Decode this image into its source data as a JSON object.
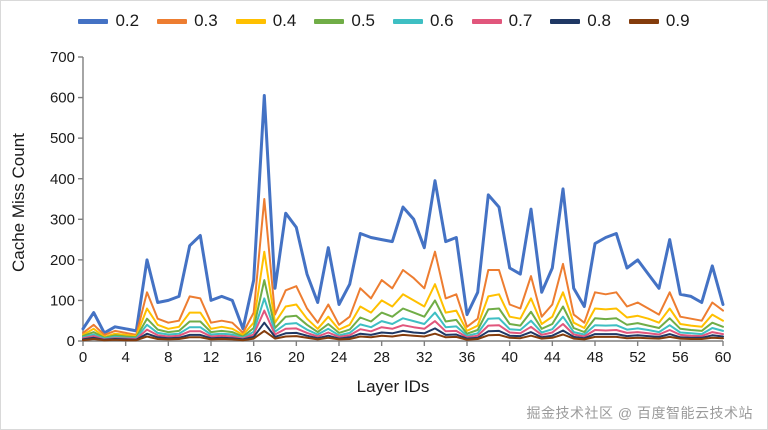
{
  "figure": {
    "background": "#ffffff",
    "watermark": "掘金技术社区 @ 百度智能云技术站"
  },
  "chart_data": {
    "type": "line",
    "title": "",
    "xlabel": "Layer IDs",
    "ylabel": "Cache Miss Count",
    "xlim": [
      0,
      60
    ],
    "ylim": [
      0,
      700
    ],
    "x_ticks": [
      0,
      4,
      8,
      12,
      16,
      20,
      24,
      28,
      32,
      36,
      40,
      44,
      48,
      52,
      56,
      60
    ],
    "y_ticks": [
      0,
      100,
      200,
      300,
      400,
      500,
      600,
      700
    ],
    "grid": false,
    "legend_position": "top",
    "axis_color": "#7f7f7f",
    "tick_label_color": "#1a1a1a",
    "x": [
      0,
      1,
      2,
      3,
      4,
      5,
      6,
      7,
      8,
      9,
      10,
      11,
      12,
      13,
      14,
      15,
      16,
      17,
      18,
      19,
      20,
      21,
      22,
      23,
      24,
      25,
      26,
      27,
      28,
      29,
      30,
      31,
      32,
      33,
      34,
      35,
      36,
      37,
      38,
      39,
      40,
      41,
      42,
      43,
      44,
      45,
      46,
      47,
      48,
      49,
      50,
      51,
      52,
      53,
      54,
      55,
      56,
      57,
      58,
      59,
      60
    ],
    "series": [
      {
        "name": "0.2",
        "color": "#4472C4",
        "line_width": 3,
        "values": [
          30,
          70,
          20,
          35,
          30,
          25,
          200,
          95,
          100,
          110,
          235,
          260,
          100,
          110,
          100,
          30,
          150,
          605,
          130,
          315,
          280,
          165,
          95,
          230,
          90,
          140,
          265,
          255,
          250,
          245,
          330,
          300,
          230,
          395,
          245,
          255,
          65,
          120,
          360,
          330,
          180,
          165,
          325,
          120,
          180,
          375,
          130,
          85,
          240,
          255,
          265,
          180,
          200,
          165,
          130,
          250,
          115,
          110,
          95,
          185,
          90
        ]
      },
      {
        "name": "0.3",
        "color": "#ED7D31",
        "line_width": 2,
        "values": [
          20,
          40,
          15,
          25,
          20,
          15,
          120,
          55,
          45,
          50,
          110,
          105,
          45,
          50,
          45,
          20,
          70,
          350,
          65,
          125,
          135,
          80,
          45,
          90,
          40,
          60,
          130,
          105,
          150,
          130,
          175,
          155,
          130,
          220,
          105,
          115,
          35,
          55,
          175,
          175,
          90,
          80,
          160,
          60,
          90,
          190,
          65,
          45,
          120,
          115,
          120,
          85,
          95,
          80,
          65,
          120,
          60,
          55,
          50,
          95,
          75
        ]
      },
      {
        "name": "0.4",
        "color": "#FFC000",
        "line_width": 2,
        "values": [
          15,
          30,
          10,
          18,
          15,
          12,
          80,
          40,
          30,
          35,
          70,
          70,
          30,
          35,
          30,
          15,
          45,
          220,
          45,
          85,
          90,
          55,
          30,
          60,
          28,
          40,
          85,
          70,
          100,
          85,
          115,
          100,
          85,
          140,
          70,
          75,
          25,
          38,
          110,
          115,
          60,
          55,
          105,
          42,
          60,
          120,
          45,
          32,
          80,
          78,
          80,
          58,
          62,
          55,
          45,
          80,
          42,
          38,
          35,
          65,
          50
        ]
      },
      {
        "name": "0.5",
        "color": "#70AD47",
        "line_width": 2,
        "values": [
          12,
          22,
          8,
          14,
          11,
          9,
          55,
          28,
          22,
          25,
          48,
          48,
          22,
          25,
          22,
          11,
          32,
          150,
          32,
          60,
          62,
          40,
          22,
          42,
          20,
          28,
          58,
          48,
          70,
          60,
          80,
          70,
          60,
          100,
          48,
          52,
          18,
          27,
          78,
          80,
          42,
          38,
          72,
          30,
          42,
          85,
          32,
          22,
          56,
          54,
          56,
          40,
          44,
          38,
          32,
          56,
          30,
          27,
          25,
          45,
          35
        ]
      },
      {
        "name": "0.6",
        "color": "#3EBFC3",
        "line_width": 2,
        "values": [
          9,
          16,
          6,
          10,
          8,
          7,
          40,
          20,
          16,
          18,
          34,
          34,
          16,
          18,
          16,
          8,
          23,
          105,
          23,
          42,
          44,
          28,
          16,
          30,
          14,
          20,
          41,
          34,
          49,
          42,
          56,
          49,
          42,
          70,
          34,
          36,
          13,
          19,
          55,
          56,
          29,
          27,
          50,
          21,
          29,
          60,
          22,
          16,
          39,
          38,
          39,
          28,
          31,
          27,
          22,
          39,
          21,
          19,
          17,
          32,
          25
        ]
      },
      {
        "name": "0.7",
        "color": "#E1567C",
        "line_width": 2,
        "values": [
          7,
          12,
          4,
          7,
          6,
          5,
          28,
          14,
          11,
          13,
          24,
          24,
          11,
          13,
          11,
          6,
          16,
          75,
          16,
          30,
          31,
          20,
          11,
          21,
          10,
          14,
          29,
          24,
          34,
          30,
          39,
          34,
          30,
          49,
          24,
          25,
          9,
          13,
          38,
          39,
          21,
          19,
          35,
          15,
          21,
          42,
          16,
          11,
          27,
          26,
          27,
          20,
          22,
          19,
          16,
          27,
          15,
          13,
          12,
          22,
          17
        ]
      },
      {
        "name": "0.8",
        "color": "#1F3864",
        "line_width": 2,
        "values": [
          4,
          8,
          3,
          5,
          4,
          3,
          18,
          9,
          7,
          8,
          15,
          15,
          7,
          8,
          7,
          4,
          10,
          45,
          10,
          19,
          20,
          13,
          7,
          13,
          6,
          9,
          18,
          15,
          21,
          19,
          25,
          21,
          19,
          31,
          15,
          16,
          6,
          8,
          24,
          25,
          13,
          12,
          22,
          9,
          13,
          26,
          10,
          7,
          17,
          17,
          17,
          12,
          14,
          12,
          10,
          17,
          9,
          8,
          8,
          14,
          11
        ]
      },
      {
        "name": "0.9",
        "color": "#843C0C",
        "line_width": 2,
        "values": [
          2,
          5,
          2,
          3,
          2,
          2,
          11,
          5,
          4,
          5,
          9,
          9,
          4,
          5,
          4,
          2,
          6,
          25,
          6,
          11,
          12,
          8,
          4,
          8,
          4,
          5,
          11,
          9,
          13,
          11,
          15,
          13,
          11,
          18,
          9,
          10,
          3,
          5,
          14,
          15,
          8,
          7,
          13,
          6,
          8,
          16,
          6,
          4,
          10,
          10,
          10,
          7,
          8,
          7,
          6,
          10,
          6,
          5,
          5,
          8,
          7
        ]
      }
    ]
  }
}
